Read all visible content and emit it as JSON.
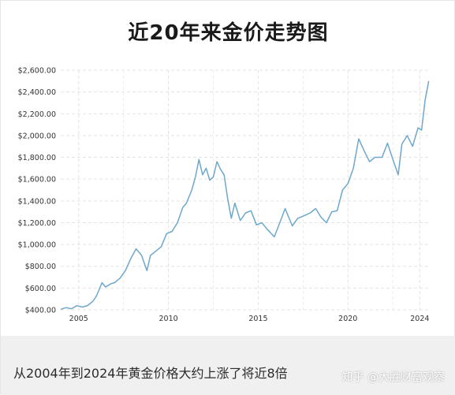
{
  "chart_data": {
    "type": "line",
    "title": "近20年来金价走势图",
    "xlabel": "",
    "ylabel": "",
    "ylim": [
      400,
      2600
    ],
    "xlim": [
      2004.0,
      2024.6
    ],
    "y_ticks": [
      400,
      600,
      800,
      1000,
      1200,
      1400,
      1600,
      1800,
      2000,
      2200,
      2400,
      2600
    ],
    "y_tick_labels": [
      "$400.00",
      "$600.00",
      "$800.00",
      "$1,000.00",
      "$1,200.00",
      "$1,400.00",
      "$1,600.00",
      "$1,800.00",
      "$2,000.00",
      "$2,200.00",
      "$2,400.00",
      "$2,600.00"
    ],
    "x_ticks": [
      2005,
      2010,
      2015,
      2020,
      2024
    ],
    "x_tick_labels": [
      "2005",
      "2010",
      "2015",
      "2020",
      "2024"
    ],
    "grid": true,
    "line_color": "#6ea7cc",
    "series": [
      {
        "x": [
          2004.0,
          2004.3,
          2004.6,
          2004.9,
          2005.2,
          2005.5,
          2005.8,
          2006.0,
          2006.3,
          2006.5,
          2006.8,
          2007.0,
          2007.3,
          2007.6,
          2007.9,
          2008.2,
          2008.5,
          2008.8,
          2009.0,
          2009.3,
          2009.6,
          2009.9,
          2010.2,
          2010.5,
          2010.8,
          2011.0,
          2011.3,
          2011.5,
          2011.7,
          2011.9,
          2012.1,
          2012.3,
          2012.5,
          2012.7,
          2012.9,
          2013.1,
          2013.3,
          2013.5,
          2013.7,
          2014.0,
          2014.3,
          2014.6,
          2014.9,
          2015.2,
          2015.5,
          2015.9,
          2016.2,
          2016.5,
          2016.9,
          2017.2,
          2017.5,
          2017.9,
          2018.2,
          2018.5,
          2018.8,
          2019.1,
          2019.4,
          2019.7,
          2020.0,
          2020.3,
          2020.6,
          2020.9,
          2021.2,
          2021.5,
          2021.9,
          2022.2,
          2022.5,
          2022.8,
          2023.0,
          2023.3,
          2023.6,
          2023.9,
          2024.1,
          2024.3,
          2024.5
        ],
        "values": [
          405,
          420,
          410,
          438,
          425,
          440,
          480,
          530,
          650,
          610,
          640,
          650,
          690,
          760,
          870,
          960,
          900,
          760,
          900,
          940,
          980,
          1100,
          1120,
          1200,
          1340,
          1380,
          1500,
          1620,
          1780,
          1640,
          1700,
          1590,
          1620,
          1760,
          1690,
          1640,
          1420,
          1240,
          1380,
          1220,
          1290,
          1310,
          1180,
          1200,
          1140,
          1070,
          1200,
          1330,
          1170,
          1240,
          1260,
          1290,
          1330,
          1250,
          1200,
          1300,
          1310,
          1500,
          1560,
          1700,
          1970,
          1860,
          1760,
          1800,
          1800,
          1930,
          1780,
          1640,
          1920,
          2000,
          1900,
          2070,
          2050,
          2330,
          2500
        ]
      }
    ]
  },
  "caption": "从2004年到2024年黄金价格大约上涨了将近8倍",
  "watermark": "知乎 @大胜财富观察"
}
